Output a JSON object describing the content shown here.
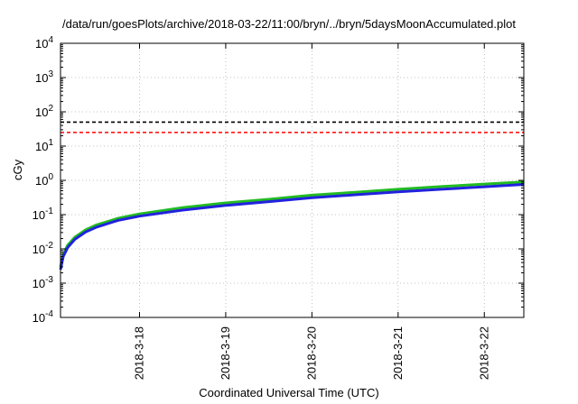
{
  "chart_data": {
    "type": "line",
    "title": "/data/run/goesPlots/archive/2018-03-22/11:00/bryn/../bryn/5daysMoonAccumulated.plot",
    "xlabel": "Coordinated Universal Time (UTC)",
    "ylabel": "cGy",
    "y_scale": "log",
    "ylim": [
      0.0001,
      10000
    ],
    "y_ticks": [
      {
        "value": 0.0001,
        "base": "10",
        "exp": "-4"
      },
      {
        "value": 0.001,
        "base": "10",
        "exp": "-3"
      },
      {
        "value": 0.01,
        "base": "10",
        "exp": "-2"
      },
      {
        "value": 0.1,
        "base": "10",
        "exp": "-1"
      },
      {
        "value": 1,
        "base": "10",
        "exp": "0"
      },
      {
        "value": 10,
        "base": "10",
        "exp": "1"
      },
      {
        "value": 100,
        "base": "10",
        "exp": "2"
      },
      {
        "value": 1000,
        "base": "10",
        "exp": "3"
      },
      {
        "value": 10000,
        "base": "10",
        "exp": "4"
      }
    ],
    "xlim": [
      "2018-03-17T02:00",
      "2018-03-22T11:00"
    ],
    "x_ticks": [
      {
        "date": "2018-03-18T00:00",
        "label": "2018-3-18"
      },
      {
        "date": "2018-03-19T00:00",
        "label": "2018-3-19"
      },
      {
        "date": "2018-03-20T00:00",
        "label": "2018-3-20"
      },
      {
        "date": "2018-03-21T00:00",
        "label": "2018-3-21"
      },
      {
        "date": "2018-03-22T00:00",
        "label": "2018-3-22"
      }
    ],
    "grid": true,
    "legend": "none",
    "thresholds": [
      {
        "value": 50,
        "color": "#000000",
        "style": "dashed"
      },
      {
        "value": 25,
        "color": "#ff0000",
        "style": "dashed"
      }
    ],
    "series": [
      {
        "color": "#22bb22",
        "points": [
          [
            "2018-03-17T02:00",
            0.003
          ],
          [
            "2018-03-17T02:45",
            0.007
          ],
          [
            "2018-03-17T04:00",
            0.013
          ],
          [
            "2018-03-17T06:00",
            0.022
          ],
          [
            "2018-03-17T09:00",
            0.036
          ],
          [
            "2018-03-17T12:00",
            0.05
          ],
          [
            "2018-03-17T18:00",
            0.078
          ],
          [
            "2018-03-18T00:00",
            0.105
          ],
          [
            "2018-03-18T12:00",
            0.16
          ],
          [
            "2018-03-19T00:00",
            0.22
          ],
          [
            "2018-03-19T12:00",
            0.28
          ],
          [
            "2018-03-20T00:00",
            0.37
          ],
          [
            "2018-03-20T12:00",
            0.45
          ],
          [
            "2018-03-21T00:00",
            0.55
          ],
          [
            "2018-03-21T12:00",
            0.66
          ],
          [
            "2018-03-22T00:00",
            0.78
          ],
          [
            "2018-03-22T11:00",
            0.9
          ]
        ]
      },
      {
        "color": "#2222dd",
        "points": [
          [
            "2018-03-17T02:00",
            0.0025
          ],
          [
            "2018-03-17T02:45",
            0.006
          ],
          [
            "2018-03-17T04:00",
            0.011
          ],
          [
            "2018-03-17T06:00",
            0.019
          ],
          [
            "2018-03-17T09:00",
            0.031
          ],
          [
            "2018-03-17T12:00",
            0.043
          ],
          [
            "2018-03-17T18:00",
            0.068
          ],
          [
            "2018-03-18T00:00",
            0.09
          ],
          [
            "2018-03-18T12:00",
            0.135
          ],
          [
            "2018-03-19T00:00",
            0.185
          ],
          [
            "2018-03-19T12:00",
            0.24
          ],
          [
            "2018-03-20T00:00",
            0.31
          ],
          [
            "2018-03-20T12:00",
            0.38
          ],
          [
            "2018-03-21T00:00",
            0.46
          ],
          [
            "2018-03-21T12:00",
            0.55
          ],
          [
            "2018-03-22T00:00",
            0.65
          ],
          [
            "2018-03-22T11:00",
            0.76
          ]
        ]
      }
    ]
  }
}
